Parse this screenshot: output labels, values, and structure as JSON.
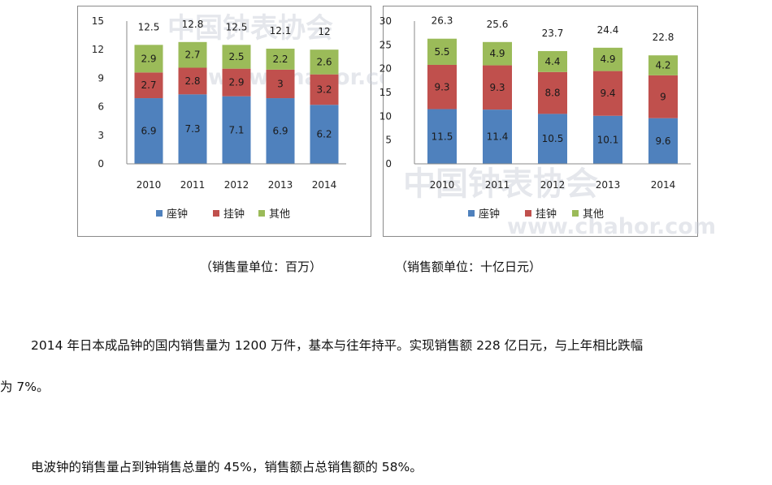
{
  "colors": {
    "series": [
      "#4f81bd",
      "#c0504d",
      "#9bbb59"
    ]
  },
  "charts": [
    {
      "yticks": [
        "0",
        "3",
        "6",
        "9",
        "12",
        "15"
      ],
      "chart_data": {
        "type": "bar",
        "stacked": true,
        "categories": [
          "2010",
          "2011",
          "2012",
          "2013",
          "2014"
        ],
        "series": [
          {
            "name": "座钟",
            "values": [
              6.9,
              7.3,
              7.1,
              6.9,
              6.2
            ],
            "labels": [
              "6.9",
              "7.3",
              "7.1",
              "6.9",
              "6.2"
            ]
          },
          {
            "name": "挂钟",
            "values": [
              2.7,
              2.8,
              2.9,
              3,
              3.2
            ],
            "labels": [
              "2.7",
              "2.8",
              "2.9",
              "3",
              "3.2"
            ]
          },
          {
            "name": "其他",
            "values": [
              2.9,
              2.7,
              2.5,
              2.2,
              2.6
            ],
            "labels": [
              "2.9",
              "2.7",
              "2.5",
              "2.2",
              "2.6"
            ]
          }
        ],
        "totals": [
          12.5,
          12.8,
          12.5,
          12.1,
          12
        ],
        "total_labels": [
          "12.5",
          "12.8",
          "12.5",
          "12.1",
          "12"
        ],
        "ylim": [
          0,
          15
        ],
        "legend": "bottom",
        "grid": false
      }
    },
    {
      "yticks": [
        "0",
        "5",
        "10",
        "15",
        "20",
        "25",
        "30"
      ],
      "chart_data": {
        "type": "bar",
        "stacked": true,
        "categories": [
          "2010",
          "2011",
          "2012",
          "2013",
          "2014"
        ],
        "series": [
          {
            "name": "座钟",
            "values": [
              11.5,
              11.4,
              10.5,
              10.1,
              9.6
            ],
            "labels": [
              "11.5",
              "11.4",
              "10.5",
              "10.1",
              "9.6"
            ]
          },
          {
            "name": "挂钟",
            "values": [
              9.3,
              9.3,
              8.8,
              9.4,
              9
            ],
            "labels": [
              "9.3",
              "9.3",
              "8.8",
              "9.4",
              "9"
            ]
          },
          {
            "name": "其他",
            "values": [
              5.5,
              4.9,
              4.4,
              4.9,
              4.2
            ],
            "labels": [
              "5.5",
              "4.9",
              "4.4",
              "4.9",
              "4.2"
            ]
          }
        ],
        "totals": [
          26.3,
          25.6,
          23.7,
          24.4,
          22.8
        ],
        "total_labels": [
          "26.3",
          "25.6",
          "23.7",
          "24.4",
          "22.8"
        ],
        "ylim": [
          0,
          30
        ],
        "legend": "bottom",
        "grid": false
      }
    }
  ],
  "watermark": {
    "text": "中国钟表协会",
    "url": "www.chahor.com"
  },
  "captions": {
    "left": "（销售量单位：百万）",
    "right": "（销售额单位：十亿日元）"
  },
  "paragraphs": {
    "p1_line1": "2014 年日本成品钟的国内销售量为 1200 万件，基本与往年持平。实现销售额 228 亿日元，与上年相比跌幅",
    "p1_line2": "为 7%。",
    "p2": "电波钟的销售量占到钟销售总量的 45%，销售额占总销售额的 58%。"
  }
}
